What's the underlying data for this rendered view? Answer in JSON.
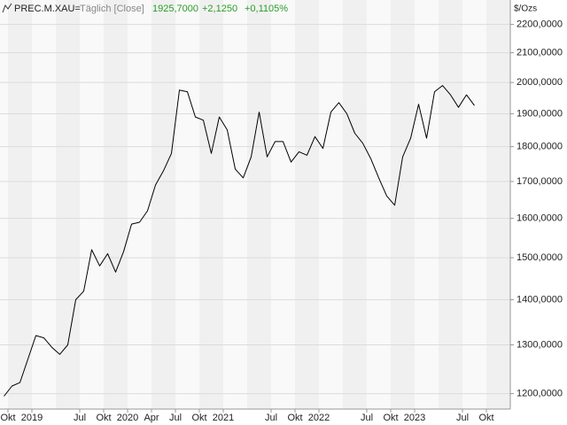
{
  "chart_data": {
    "type": "line",
    "symbol": "PREC.M.XAU=",
    "interval": "Täglich [Close]",
    "last": "1925,7000",
    "change": "+2,1250",
    "change_pct": "+0,1105%",
    "unit": "$/Ozs",
    "log_scale": true,
    "grid": true,
    "xlim": [
      "2018-09",
      "2024-01"
    ],
    "ylim": [
      1170,
      2290
    ],
    "yticks": [
      {
        "value": 1200,
        "label": "1200,0000"
      },
      {
        "value": 1300,
        "label": "1300,0000"
      },
      {
        "value": 1400,
        "label": "1400,0000"
      },
      {
        "value": 1500,
        "label": "1500,0000"
      },
      {
        "value": 1600,
        "label": "1600,0000"
      },
      {
        "value": 1700,
        "label": "1700,0000"
      },
      {
        "value": 1800,
        "label": "1800,0000"
      },
      {
        "value": 1900,
        "label": "1900,0000"
      },
      {
        "value": 2000,
        "label": "2000,0000"
      },
      {
        "value": 2100,
        "label": "2100,0000"
      },
      {
        "value": 2200,
        "label": "2200,0000"
      }
    ],
    "xticks": [
      {
        "value": "2018-10",
        "label": "Okt"
      },
      {
        "value": "2019-01",
        "label": "2019"
      },
      {
        "value": "2019-07",
        "label": "Jul"
      },
      {
        "value": "2019-10",
        "label": "Okt"
      },
      {
        "value": "2020-01",
        "label": "2020"
      },
      {
        "value": "2020-04",
        "label": "Apr"
      },
      {
        "value": "2020-07",
        "label": "Jul"
      },
      {
        "value": "2020-10",
        "label": "Okt"
      },
      {
        "value": "2021-01",
        "label": "2021"
      },
      {
        "value": "2021-07",
        "label": "Jul"
      },
      {
        "value": "2021-10",
        "label": "Okt"
      },
      {
        "value": "2022-01",
        "label": "2022"
      },
      {
        "value": "2022-07",
        "label": "Jul"
      },
      {
        "value": "2022-10",
        "label": "Okt"
      },
      {
        "value": "2023-01",
        "label": "2023"
      },
      {
        "value": "2023-07",
        "label": "Jul"
      },
      {
        "value": "2023-10",
        "label": "Okt"
      }
    ],
    "x": [
      "2018-09",
      "2018-10",
      "2018-11",
      "2018-12",
      "2019-01",
      "2019-02",
      "2019-03",
      "2019-04",
      "2019-05",
      "2019-06",
      "2019-07",
      "2019-08",
      "2019-09",
      "2019-10",
      "2019-11",
      "2019-12",
      "2020-01",
      "2020-02",
      "2020-03",
      "2020-04",
      "2020-05",
      "2020-06",
      "2020-07",
      "2020-08",
      "2020-09",
      "2020-10",
      "2020-11",
      "2020-12",
      "2021-01",
      "2021-02",
      "2021-03",
      "2021-04",
      "2021-05",
      "2021-06",
      "2021-07",
      "2021-08",
      "2021-09",
      "2021-10",
      "2021-11",
      "2021-12",
      "2022-01",
      "2022-02",
      "2022-03",
      "2022-04",
      "2022-05",
      "2022-06",
      "2022-07",
      "2022-08",
      "2022-09",
      "2022-10",
      "2022-11",
      "2022-12",
      "2023-01",
      "2023-02",
      "2023-03",
      "2023-04",
      "2023-05",
      "2023-06",
      "2023-07",
      "2023-08"
    ],
    "series": [
      {
        "name": "PREC.M.XAU=",
        "color": "#000000",
        "values": [
          1195,
          1215,
          1222,
          1270,
          1320,
          1315,
          1295,
          1280,
          1300,
          1400,
          1420,
          1520,
          1480,
          1510,
          1465,
          1515,
          1585,
          1590,
          1620,
          1690,
          1730,
          1780,
          1975,
          1970,
          1890,
          1880,
          1780,
          1890,
          1850,
          1735,
          1710,
          1770,
          1905,
          1770,
          1815,
          1815,
          1755,
          1785,
          1775,
          1830,
          1795,
          1905,
          1935,
          1900,
          1840,
          1810,
          1765,
          1710,
          1660,
          1635,
          1770,
          1825,
          1930,
          1825,
          1970,
          1990,
          1960,
          1920,
          1960,
          1925.7
        ]
      }
    ]
  }
}
